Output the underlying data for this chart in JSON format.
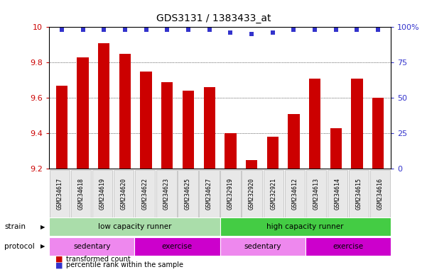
{
  "title": "GDS3131 / 1383433_at",
  "samples": [
    "GSM234617",
    "GSM234618",
    "GSM234619",
    "GSM234620",
    "GSM234622",
    "GSM234623",
    "GSM234625",
    "GSM234627",
    "GSM232919",
    "GSM232920",
    "GSM232921",
    "GSM234612",
    "GSM234613",
    "GSM234614",
    "GSM234615",
    "GSM234616"
  ],
  "bar_values": [
    9.67,
    9.83,
    9.91,
    9.85,
    9.75,
    9.69,
    9.64,
    9.66,
    9.4,
    9.25,
    9.38,
    9.51,
    9.71,
    9.43,
    9.71,
    9.6
  ],
  "percentile_values": [
    98,
    98,
    98,
    98,
    98,
    98,
    98,
    98,
    96,
    95,
    96,
    98,
    98,
    98,
    98,
    98
  ],
  "ylim_left": [
    9.2,
    10.0
  ],
  "bar_color": "#cc0000",
  "dot_color": "#3333cc",
  "background_color": "#ffffff",
  "strain_groups": [
    {
      "label": "low capacity runner",
      "start": 0,
      "end": 8,
      "color": "#aaddaa"
    },
    {
      "label": "high capacity runner",
      "start": 8,
      "end": 16,
      "color": "#44cc44"
    }
  ],
  "protocol_groups": [
    {
      "label": "sedentary",
      "start": 0,
      "end": 4,
      "color": "#ee88ee"
    },
    {
      "label": "exercise",
      "start": 4,
      "end": 8,
      "color": "#cc00cc"
    },
    {
      "label": "sedentary",
      "start": 8,
      "end": 12,
      "color": "#ee88ee"
    },
    {
      "label": "exercise",
      "start": 12,
      "end": 16,
      "color": "#cc00cc"
    }
  ],
  "legend_items": [
    {
      "label": "transformed count",
      "color": "#cc0000"
    },
    {
      "label": "percentile rank within the sample",
      "color": "#3333cc"
    }
  ],
  "strain_label": "strain",
  "protocol_label": "protocol",
  "tick_values_left": [
    9.2,
    9.4,
    9.6,
    9.8,
    10.0
  ],
  "tick_labels_left": [
    "9.2",
    "9.4",
    "9.6",
    "9.8",
    "10"
  ],
  "tick_values_right_pct": [
    0,
    25,
    50,
    75,
    100
  ],
  "tick_labels_right": [
    "0",
    "25",
    "50",
    "75",
    "100%"
  ]
}
